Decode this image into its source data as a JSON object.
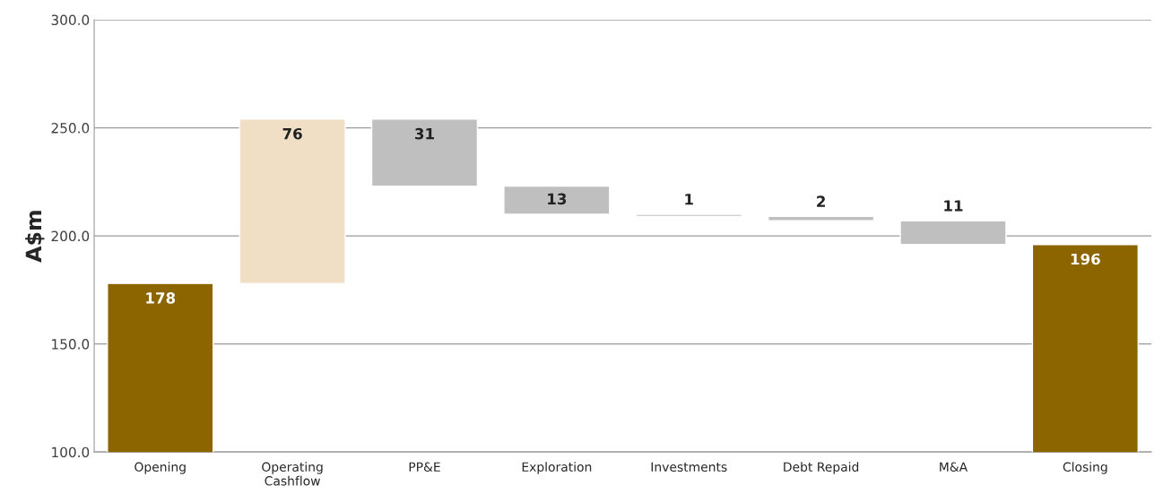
{
  "chart_data": {
    "type": "bar",
    "ylabel": "A$m",
    "categories": [
      "Opening",
      "Operating\nCashflow",
      "PP&E",
      "Exploration",
      "Investments",
      "Debt Repaid",
      "M&A",
      "Closing"
    ],
    "values": [
      178,
      76,
      -31,
      -13,
      -1,
      -2,
      -11,
      196
    ],
    "base": [
      0,
      178,
      254,
      223,
      210,
      209,
      207,
      0
    ],
    "colors": [
      "#8c6400",
      "#f0dfc4",
      "#bfbfbf",
      "#bfbfbf",
      "#bfbfbf",
      "#bfbfbf",
      "#bfbfbf",
      "#8c6400"
    ],
    "value_labels": [
      "178",
      "76",
      "31",
      "13",
      "1",
      "2",
      "11",
      "196"
    ],
    "ylim": [
      100,
      300
    ],
    "yticks": [
      {
        "value": 100,
        "label": "100.0"
      },
      {
        "value": 150,
        "label": "150.0"
      },
      {
        "value": 200,
        "label": "200.0"
      },
      {
        "value": 250,
        "label": "250.0"
      },
      {
        "value": 300,
        "label": "300.0"
      }
    ],
    "grid": "y",
    "legend": false
  }
}
